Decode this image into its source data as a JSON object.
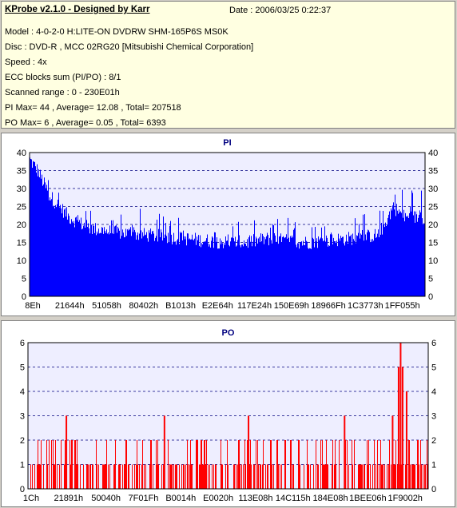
{
  "info": {
    "title": "KProbe v2.1.0 - Designed by Karr",
    "date": "Date : 2006/03/25 0:22:37",
    "lines": [
      "Model : 4-0-2-0 H:LITE-ON DVDRW SHM-165P6S MS0K",
      "Disc : DVD-R , MCC 02RG20   [Mitsubishi Chemical Corporation]",
      "Speed : 4x",
      "ECC blocks sum (PI/PO) : 8/1",
      "Scanned range : 0 - 230E01h",
      "PI Max= 44 , Average= 12.08 , Total= 207518",
      "PO Max= 6 , Average= 0.05 , Total= 6393"
    ]
  },
  "colors": {
    "pi_fill": "#0000ff",
    "po_fill": "#ff0000",
    "plot_bg": "#eeeeff",
    "grid": "#000080"
  },
  "chart_data": [
    {
      "type": "bar",
      "title": "PI",
      "ylim": [
        0,
        40
      ],
      "yticks": [
        0,
        5,
        10,
        15,
        20,
        25,
        30,
        35,
        40
      ],
      "xticks": [
        "8Eh",
        "21644h",
        "51058h",
        "80402h",
        "B1013h",
        "E2E64h",
        "117E24h",
        "150E69h",
        "18966Fh",
        "1C3773h",
        "1FF055h"
      ],
      "grid": "horizontal dashed",
      "profile": {
        "x": [
          0,
          0.02,
          0.05,
          0.1,
          0.15,
          0.2,
          0.3,
          0.4,
          0.5,
          0.55,
          0.6,
          0.7,
          0.8,
          0.88,
          0.9,
          0.92,
          0.95,
          1.0
        ],
        "base": [
          38,
          35,
          28,
          22,
          19,
          18,
          17,
          16,
          15,
          15,
          16,
          15,
          16,
          17,
          20,
          25,
          22,
          22
        ],
        "spike_max": [
          44,
          41,
          34,
          29,
          27,
          26,
          24,
          22,
          22,
          21,
          22,
          22,
          23,
          24,
          29,
          31,
          30,
          30
        ]
      }
    },
    {
      "type": "bar",
      "title": "PO",
      "ylim": [
        0,
        6
      ],
      "yticks": [
        0,
        1,
        2,
        3,
        4,
        5,
        6
      ],
      "xticks": [
        "1Ch",
        "21891h",
        "50040h",
        "7F01Fh",
        "B0014h",
        "E0020h",
        "113E08h",
        "14C115h",
        "184E08h",
        "1BEE06h",
        "1F9002h"
      ],
      "grid": "horizontal dashed",
      "peaks": [
        {
          "x": 0.095,
          "value": 3
        },
        {
          "x": 0.34,
          "value": 3
        },
        {
          "x": 0.55,
          "value": 3
        },
        {
          "x": 0.79,
          "value": 3
        },
        {
          "x": 0.91,
          "value": 3
        },
        {
          "x": 0.925,
          "value": 5
        },
        {
          "x": 0.93,
          "value": 6
        },
        {
          "x": 0.935,
          "value": 5
        },
        {
          "x": 0.945,
          "value": 4
        }
      ]
    }
  ]
}
